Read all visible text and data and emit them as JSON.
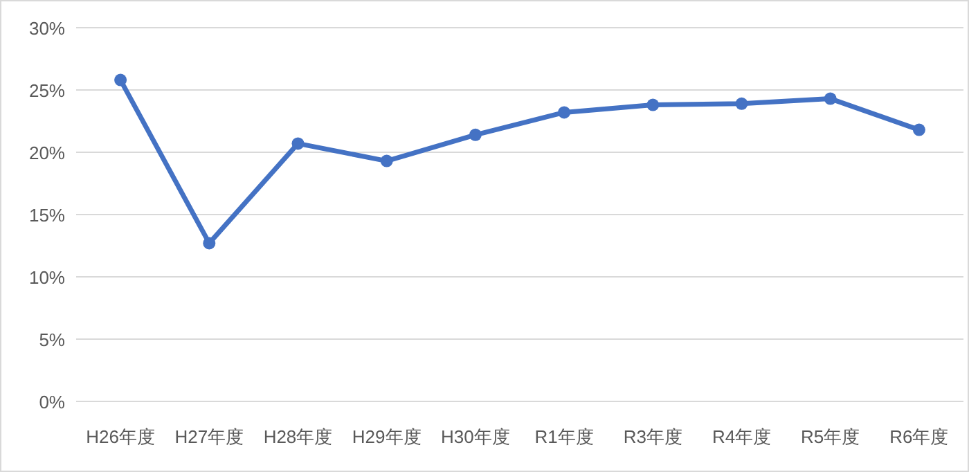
{
  "chart_data": {
    "type": "line",
    "categories": [
      "H26年度",
      "H27年度",
      "H28年度",
      "H29年度",
      "H30年度",
      "R1年度",
      "R3年度",
      "R4年度",
      "R5年度",
      "R6年度"
    ],
    "series": [
      {
        "color": "#4472c4",
        "values": [
          25.8,
          12.7,
          20.7,
          19.3,
          21.4,
          23.2,
          23.8,
          23.9,
          24.3,
          21.8
        ]
      }
    ],
    "ylim": [
      0,
      30
    ],
    "yticks": [
      {
        "value": 0,
        "label": "0%"
      },
      {
        "value": 5,
        "label": "5%"
      },
      {
        "value": 10,
        "label": "10%"
      },
      {
        "value": 15,
        "label": "15%"
      },
      {
        "value": 20,
        "label": "20%"
      },
      {
        "value": 25,
        "label": "25%"
      },
      {
        "value": 30,
        "label": "30%"
      }
    ],
    "grid": "y",
    "marker": "circle",
    "line_style": "solid"
  }
}
